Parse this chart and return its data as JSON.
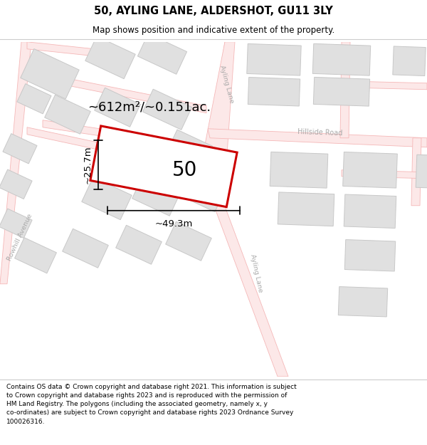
{
  "title": "50, AYLING LANE, ALDERSHOT, GU11 3LY",
  "subtitle": "Map shows position and indicative extent of the property.",
  "footer": "Contains OS data © Crown copyright and database right 2021. This information is subject to Crown copyright and database rights 2023 and is reproduced with the permission of\nHM Land Registry. The polygons (including the associated geometry, namely x, y\nco-ordinates) are subject to Crown copyright and database rights 2023 Ordnance Survey\n100026316.",
  "map_bg": "#ffffff",
  "road_line_color": "#f5b8b8",
  "road_fill_color": "#fce8e8",
  "building_fill": "#e0e0e0",
  "building_edge": "#c8c8c8",
  "highlight_fill": "#ffffff",
  "highlight_edge": "#cc0000",
  "highlight_lw": 2.2,
  "label_color": "#000000",
  "road_label_color": "#aaaaaa",
  "area_text": "~612m²/~0.151ac.",
  "dim_width": "~49.3m",
  "dim_height": "~25.7m",
  "label_50": "50"
}
